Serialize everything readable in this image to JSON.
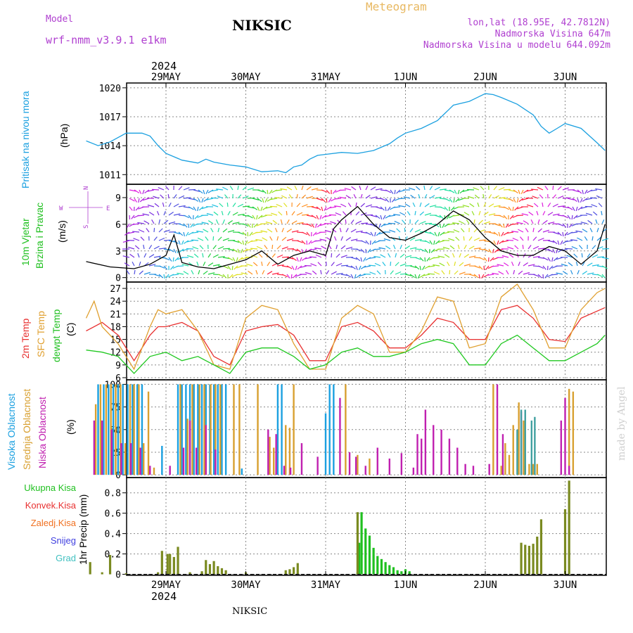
{
  "header": {
    "model_label": "Model",
    "model_name": "wrf-nmm_v3.9.1 e1km",
    "title": "NIKSIC",
    "subtitle": "Meteogram",
    "lonlat": "lon,lat (18.95E, 42.7812N)",
    "altitude": "Nadmorska Visina 647m",
    "model_altitude": "Nadmorska Visina u modelu 644.092m"
  },
  "footer": {
    "station": "NIKSIC",
    "watermark": "made by Angel",
    "year": "2024"
  },
  "chart_data": [
    {
      "type": "line",
      "panel": "pressure",
      "ylabel_main": "Pritisak na nivou mora",
      "ylabel_unit": "(hPa)",
      "x_ticks": [
        "29MAY",
        "30MAY",
        "31MAY",
        "1JUN",
        "2JUN",
        "3JUN"
      ],
      "x_day_starts": [
        1,
        2,
        3,
        4,
        5,
        6
      ],
      "ylim": [
        1010,
        1020.5
      ],
      "y_ticks": [
        1011,
        1014,
        1017,
        1020
      ],
      "grid": true,
      "color": "#1ba0e0",
      "x": [
        0,
        0.15,
        0.3,
        0.5,
        0.7,
        0.8,
        0.9,
        1.0,
        1.2,
        1.4,
        1.5,
        1.6,
        1.8,
        2.0,
        2.2,
        2.4,
        2.5,
        2.6,
        2.7,
        2.8,
        2.9,
        3.0,
        3.2,
        3.4,
        3.6,
        3.8,
        3.9,
        4.0,
        4.2,
        4.4,
        4.5,
        4.6,
        4.8,
        4.9,
        5.0,
        5.1,
        5.2,
        5.4,
        5.6,
        5.7,
        5.8,
        5.9,
        6.0,
        6.2,
        6.4,
        6.5
      ],
      "values": [
        1014.5,
        1014.0,
        1014.4,
        1015.3,
        1015.3,
        1015.0,
        1014.0,
        1013.2,
        1012.5,
        1012.2,
        1012.6,
        1012.3,
        1012.0,
        1011.8,
        1011.3,
        1011.4,
        1011.2,
        1011.8,
        1012.0,
        1012.6,
        1013.0,
        1013.1,
        1013.3,
        1013.2,
        1013.5,
        1014.2,
        1014.8,
        1015.3,
        1015.8,
        1016.6,
        1017.4,
        1018.2,
        1018.6,
        1019.0,
        1019.4,
        1019.3,
        1019.0,
        1018.3,
        1017.2,
        1016.0,
        1015.3,
        1015.8,
        1016.3,
        1015.8,
        1014.3,
        1013.5
      ]
    },
    {
      "type": "line",
      "panel": "wind",
      "ylabel_main": "10m Vjetar",
      "ylabel_main2": "Brzina i Pravac",
      "ylabel_unit": "(m/s)",
      "compass": {
        "n": "N",
        "w": "W",
        "e": "E",
        "s": "S"
      },
      "ylim": [
        -0.5,
        10.5
      ],
      "y_ticks": [
        0,
        3,
        6,
        9
      ],
      "grid": true,
      "speed_color": "#000000",
      "x": [
        0,
        0.3,
        0.6,
        0.8,
        1.0,
        1.1,
        1.2,
        1.4,
        1.6,
        1.8,
        2.0,
        2.2,
        2.4,
        2.6,
        2.8,
        3.0,
        3.1,
        3.2,
        3.4,
        3.6,
        3.8,
        4.0,
        4.2,
        4.4,
        4.6,
        4.8,
        5.0,
        5.2,
        5.4,
        5.6,
        5.8,
        6.0,
        6.2,
        6.4,
        6.5
      ],
      "values": [
        1.8,
        1.2,
        1.0,
        1.5,
        2.5,
        4.8,
        1.7,
        1.2,
        1.0,
        1.5,
        2.0,
        3.0,
        1.5,
        2.5,
        3.0,
        2.5,
        5.5,
        6.5,
        8.0,
        6.0,
        4.5,
        4.2,
        5.0,
        6.0,
        7.5,
        6.5,
        4.5,
        3.0,
        2.5,
        2.5,
        3.5,
        3.0,
        1.5,
        3.0,
        6.0
      ],
      "arrow_colors": [
        "#e020e0",
        "#b020e0",
        "#7a30e0",
        "#5050e0",
        "#2090e0",
        "#20c0e0",
        "#20e0a0",
        "#20d040",
        "#90e020",
        "#e0e020",
        "#ff9020",
        "#ff2040"
      ],
      "gust_marker_color": "#ff3030"
    },
    {
      "type": "line",
      "panel": "temperature",
      "ylabel_lines": [
        "2m Temp",
        "SFC Temp",
        "dewpt Temp"
      ],
      "ylabel_unit": "(C)",
      "ylim": [
        5.5,
        28.5
      ],
      "y_ticks": [
        6,
        9,
        12,
        15,
        18,
        21,
        24,
        27
      ],
      "grid": true,
      "series": [
        {
          "name": "2m Temp",
          "color": "#e83030",
          "x": [
            0,
            0.2,
            0.4,
            0.6,
            0.8,
            0.9,
            1.0,
            1.2,
            1.4,
            1.6,
            1.8,
            2.0,
            2.2,
            2.4,
            2.6,
            2.8,
            3.0,
            3.2,
            3.4,
            3.6,
            3.8,
            4.0,
            4.2,
            4.4,
            4.6,
            4.8,
            5.0,
            5.2,
            5.4,
            5.6,
            5.8,
            6.0,
            6.2,
            6.5
          ],
          "values": [
            17,
            19,
            16,
            10,
            16,
            18,
            18,
            19,
            17,
            11,
            9,
            17,
            18,
            18.5,
            16,
            10,
            10,
            18,
            19,
            17,
            13,
            13,
            16,
            20,
            19,
            15,
            15,
            22,
            23,
            20,
            15,
            14.5,
            20,
            22.5
          ]
        },
        {
          "name": "SFC Temp",
          "color": "#e0a030",
          "x": [
            0,
            0.1,
            0.2,
            0.4,
            0.6,
            0.8,
            0.9,
            1.0,
            1.2,
            1.4,
            1.6,
            1.8,
            2.0,
            2.2,
            2.4,
            2.6,
            2.8,
            3.0,
            3.2,
            3.4,
            3.6,
            3.8,
            4.0,
            4.2,
            4.4,
            4.6,
            4.8,
            5.0,
            5.2,
            5.4,
            5.6,
            5.8,
            6.0,
            6.2,
            6.4,
            6.5
          ],
          "values": [
            20,
            24,
            18,
            14,
            8,
            18,
            22,
            21,
            22,
            17,
            9,
            8,
            20,
            23,
            22,
            14,
            8,
            8,
            20,
            23,
            21,
            12,
            12,
            17,
            25,
            24,
            13,
            14,
            25,
            28,
            22,
            13,
            13,
            22,
            26,
            27
          ]
        },
        {
          "name": "dewpt Temp",
          "color": "#20c820",
          "x": [
            0,
            0.2,
            0.4,
            0.6,
            0.8,
            1.0,
            1.2,
            1.4,
            1.6,
            1.8,
            2.0,
            2.2,
            2.4,
            2.6,
            2.8,
            3.0,
            3.2,
            3.4,
            3.6,
            3.8,
            4.0,
            4.2,
            4.4,
            4.6,
            4.8,
            5.0,
            5.2,
            5.4,
            5.6,
            5.8,
            6.0,
            6.2,
            6.4,
            6.5
          ],
          "values": [
            12.5,
            12,
            11,
            7,
            11,
            12,
            10,
            11,
            9,
            7,
            12,
            13,
            13,
            11,
            8,
            9,
            12,
            13,
            11,
            11,
            12,
            14,
            15,
            14,
            9,
            9,
            14,
            16,
            13,
            10,
            10,
            12,
            14,
            16
          ]
        }
      ]
    },
    {
      "type": "bar",
      "panel": "cloud",
      "ylabel_lines": [
        "Visoka Oblacnost",
        "Srednja Oblacnost",
        "Niska Oblacnost"
      ],
      "ylabel_unit": "(%)",
      "ylim": [
        -3,
        105
      ],
      "y_ticks": [
        0,
        25,
        50,
        75,
        100
      ],
      "grid": true,
      "series": [
        {
          "name": "Visoka Oblacnost",
          "color": "#1ba0e0",
          "x": [
            0.15,
            0.22,
            0.28,
            0.34,
            0.4,
            0.46,
            0.52,
            0.58,
            0.64,
            0.7,
            0.95,
            1.15,
            1.2,
            1.25,
            1.3,
            1.35,
            1.4,
            1.45,
            1.5,
            1.55,
            1.6,
            1.65,
            1.7,
            1.75,
            1.95,
            2.4,
            2.45,
            3.0,
            3.05,
            3.1
          ],
          "values": [
            100,
            100,
            100,
            100,
            100,
            100,
            100,
            100,
            100,
            100,
            32,
            100,
            100,
            100,
            100,
            100,
            100,
            100,
            100,
            100,
            100,
            100,
            100,
            100,
            7,
            100,
            100,
            68,
            100,
            100
          ]
        },
        {
          "name": "Srednja Oblacnost",
          "color": "#d8a030",
          "x": [
            0.12,
            0.18,
            0.25,
            0.31,
            0.37,
            0.43,
            0.49,
            0.55,
            0.6,
            0.66,
            0.72,
            0.78,
            0.85,
            1.18,
            1.27,
            1.33,
            1.42,
            1.48,
            1.56,
            1.62,
            1.68,
            1.85,
            1.92,
            2.15,
            2.3,
            2.35,
            2.5,
            2.55,
            2.6,
            3.25,
            3.4,
            3.55,
            5.1,
            5.2,
            5.25,
            5.3,
            5.35,
            5.42,
            5.48,
            5.5,
            5.55,
            5.6,
            5.65,
            6.05,
            6.1
          ],
          "values": [
            78,
            100,
            100,
            100,
            100,
            100,
            35,
            100,
            100,
            100,
            35,
            92,
            8,
            100,
            62,
            100,
            100,
            100,
            100,
            100,
            100,
            100,
            100,
            100,
            42,
            30,
            55,
            52,
            100,
            100,
            22,
            18,
            100,
            10,
            35,
            22,
            55,
            80,
            60,
            10,
            12,
            12,
            12,
            95,
            92
          ]
        },
        {
          "name": "Niska Oblacnost",
          "color": "#c020b0",
          "x": [
            0.1,
            0.2,
            0.32,
            0.44,
            0.56,
            0.68,
            0.8,
            1.05,
            1.22,
            1.3,
            1.38,
            1.5,
            1.62,
            2.28,
            2.38,
            2.48,
            2.56,
            2.7,
            2.9,
            3.18,
            3.3,
            3.38,
            3.5,
            3.65,
            3.8,
            3.95,
            4.1,
            4.15,
            4.2,
            4.25,
            4.35,
            4.45,
            4.55,
            4.65,
            4.75,
            4.85,
            5.05,
            5.15,
            5.22,
            5.45,
            5.95,
            6.0,
            6.05
          ],
          "values": [
            60,
            60,
            50,
            35,
            35,
            30,
            10,
            10,
            30,
            60,
            30,
            55,
            28,
            50,
            45,
            10,
            8,
            35,
            20,
            85,
            25,
            20,
            10,
            30,
            18,
            24,
            8,
            45,
            40,
            72,
            55,
            50,
            40,
            30,
            12,
            10,
            12,
            100,
            45,
            70,
            60,
            85,
            10
          ]
        },
        {
          "name": "teal",
          "color": "#40a0a0",
          "x": [
            5.4,
            5.45,
            5.5,
            5.58,
            5.62
          ],
          "values": [
            50,
            72,
            72,
            60,
            64
          ]
        }
      ]
    },
    {
      "type": "bar",
      "panel": "precipitation",
      "ylabel_lines": [
        "Ukupna Kisa",
        "Konvek.Kisa",
        "Zaledj.Kisa",
        "Snijeg",
        "Grad"
      ],
      "legend_colors": [
        "#20c020",
        "#e83030",
        "#f07020",
        "#4040e0",
        "#40c0c0"
      ],
      "ylabel_unit": "1hr Precip (mm)",
      "ylim": [
        -0.01,
        0.95
      ],
      "y_ticks": [
        0,
        0.2,
        0.4,
        0.6,
        0.8
      ],
      "y_tick_labels": [
        "0",
        "0.2",
        "0.4",
        "0.6",
        "0.8"
      ],
      "grid": true,
      "series": [
        {
          "name": "Ukupna Kisa",
          "color": "#20c020",
          "x": [
            3.4,
            3.42,
            3.45,
            3.5,
            3.55,
            3.6,
            3.65,
            3.7,
            3.75,
            3.8,
            3.85,
            3.9,
            3.95,
            4.0,
            4.05
          ],
          "values": [
            0.02,
            0.31,
            0.61,
            0.45,
            0.38,
            0.26,
            0.18,
            0.15,
            0.12,
            0.09,
            0.07,
            0.04,
            0.03,
            0.05,
            0.03
          ]
        },
        {
          "name": "Konvek.Kisa",
          "color": "#7a8a20",
          "x": [
            0.05,
            0.2,
            0.3,
            0.5,
            0.9,
            0.95,
            1.02,
            1.05,
            1.1,
            1.15,
            1.3,
            1.45,
            1.5,
            1.55,
            1.6,
            1.65,
            1.7,
            1.75,
            2.0,
            2.5,
            2.55,
            2.6,
            2.65,
            2.7,
            2.75,
            2.8,
            2.85,
            3.4,
            5.45,
            5.5,
            5.55,
            5.6,
            5.65,
            5.7,
            5.75,
            6.0,
            6.05
          ],
          "values": [
            0.12,
            0.02,
            0.19,
            0.01,
            0.02,
            0.23,
            0.2,
            0.2,
            0.17,
            0.27,
            0.02,
            0.03,
            0.14,
            0.1,
            0.13,
            0.08,
            0.06,
            0.04,
            0.02,
            0.04,
            0.05,
            0.07,
            0.11,
            0.0,
            0.0,
            0.0,
            0.0,
            0.61,
            0.31,
            0.29,
            0.28,
            0.3,
            0.37,
            0.54,
            0.0,
            0.64,
            0.92
          ]
        }
      ]
    }
  ]
}
